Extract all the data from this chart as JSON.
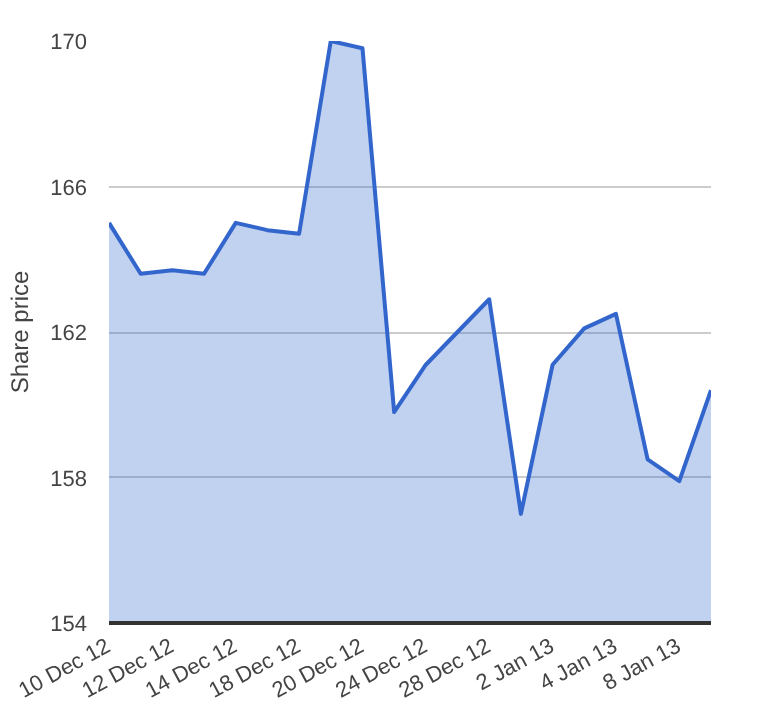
{
  "chart_data": {
    "type": "area",
    "ylabel": "Share price",
    "categories": [
      "10 Dec 12",
      null,
      "12 Dec 12",
      null,
      "14 Dec 12",
      null,
      "18 Dec 12",
      null,
      "20 Dec 12",
      null,
      "24 Dec 12",
      null,
      "28 Dec 12",
      null,
      "2 Jan 13",
      null,
      "4 Jan 13",
      null,
      "8 Jan 13",
      null
    ],
    "series": [
      {
        "color": "#3366cc",
        "values": [
          165.0,
          163.6,
          163.7,
          163.6,
          165.0,
          164.8,
          164.7,
          170.0,
          169.8,
          159.8,
          161.1,
          162.0,
          162.9,
          157.0,
          161.1,
          162.1,
          162.5,
          158.5,
          157.9,
          160.4
        ]
      }
    ],
    "ylim": [
      154,
      170
    ],
    "yticks": [
      154,
      158,
      162,
      166,
      170
    ],
    "grid": "y"
  }
}
